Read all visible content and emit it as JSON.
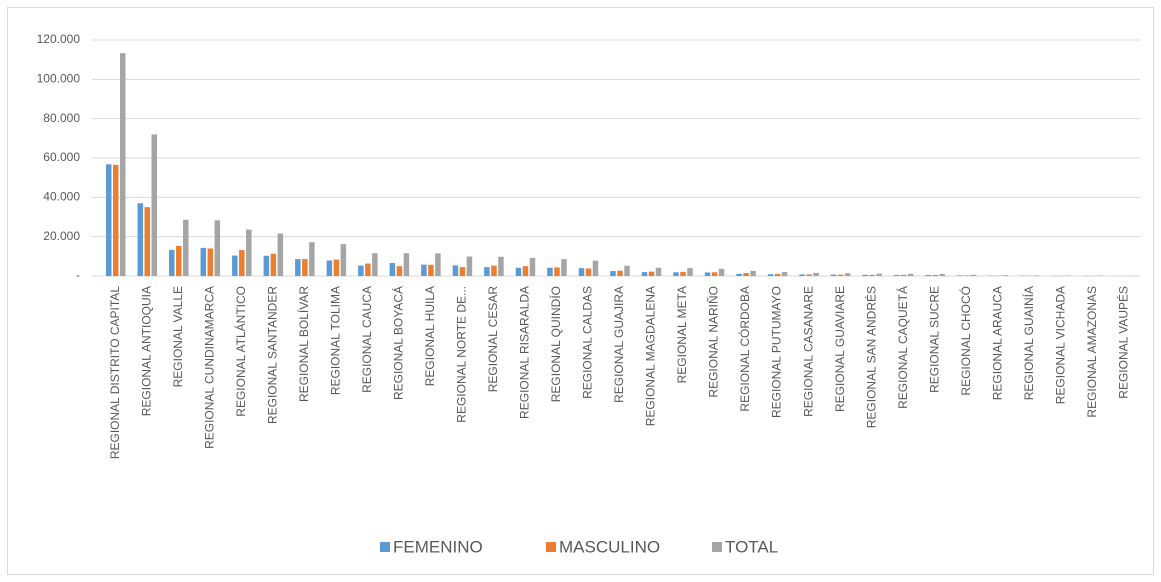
{
  "chart_data": {
    "type": "bar",
    "categories": [
      "REGIONAL DISTRITO CAPITAL",
      "REGIONAL ANTIOQUIA",
      "REGIONAL VALLE",
      "REGIONAL CUNDINAMARCA",
      "REGIONAL ATLÁNTICO",
      "REGIONAL SANTANDER",
      "REGIONAL BOLÍVAR",
      "REGIONAL TOLIMA",
      "REGIONAL CAUCA",
      "REGIONAL BOYACÁ",
      "REGIONAL HUILA",
      "REGIONAL NORTE DE...",
      "REGIONAL CESAR",
      "REGIONAL RISARALDA",
      "REGIONAL QUINDÍO",
      "REGIONAL CALDAS",
      "REGIONAL GUAJIRA",
      "REGIONAL MAGDALENA",
      "REGIONAL META",
      "REGIONAL NARIÑO",
      "REGIONAL CÓRDOBA",
      "REGIONAL PUTUMAYO",
      "REGIONAL CASANARE",
      "REGIONAL GUAVIARE",
      "REGIONAL SAN ANDRÉS",
      "REGIONAL CAQUETÁ",
      "REGIONAL SUCRE",
      "REGIONAL CHOCÓ",
      "REGIONAL ARAUCA",
      "REGIONAL GUAINÍA",
      "REGIONAL VICHADA",
      "REGIONAL AMAZONAS",
      "REGIONAL VAUPÉS"
    ],
    "series": [
      {
        "name": "FEMENINO",
        "color": "#5b9bd5",
        "values": [
          56800,
          37000,
          13300,
          14300,
          10400,
          10300,
          8600,
          7900,
          5300,
          6600,
          5800,
          5400,
          4500,
          4200,
          4200,
          4000,
          2500,
          2000,
          1900,
          1800,
          1100,
          900,
          800,
          700,
          600,
          500,
          500,
          300,
          200,
          150,
          100,
          100,
          50
        ]
      },
      {
        "name": "MASCULINO",
        "color": "#ed7d31",
        "values": [
          56500,
          35000,
          15300,
          14000,
          13200,
          11300,
          8600,
          8300,
          6300,
          5000,
          5700,
          4500,
          5300,
          5000,
          4400,
          3800,
          2700,
          2200,
          2100,
          1900,
          1500,
          1100,
          800,
          700,
          600,
          600,
          500,
          300,
          200,
          150,
          100,
          100,
          50
        ]
      },
      {
        "name": "TOTAL",
        "color": "#a5a5a5",
        "values": [
          113300,
          72000,
          28600,
          28300,
          23600,
          21600,
          17200,
          16200,
          11600,
          11600,
          11500,
          9900,
          9800,
          9200,
          8600,
          7800,
          5200,
          4200,
          4000,
          3700,
          2600,
          2000,
          1600,
          1400,
          1200,
          1100,
          1000,
          600,
          400,
          300,
          200,
          200,
          100
        ]
      }
    ],
    "ylim": [
      0,
      120000
    ],
    "yticks": [
      {
        "value": 0,
        "label": "-"
      },
      {
        "value": 20000,
        "label": "20.000"
      },
      {
        "value": 40000,
        "label": "40.000"
      },
      {
        "value": 60000,
        "label": "60.000"
      },
      {
        "value": 80000,
        "label": "80.000"
      },
      {
        "value": 100000,
        "label": "100.000"
      },
      {
        "value": 120000,
        "label": "120.000"
      }
    ],
    "grid": true,
    "legend": "bottom"
  }
}
